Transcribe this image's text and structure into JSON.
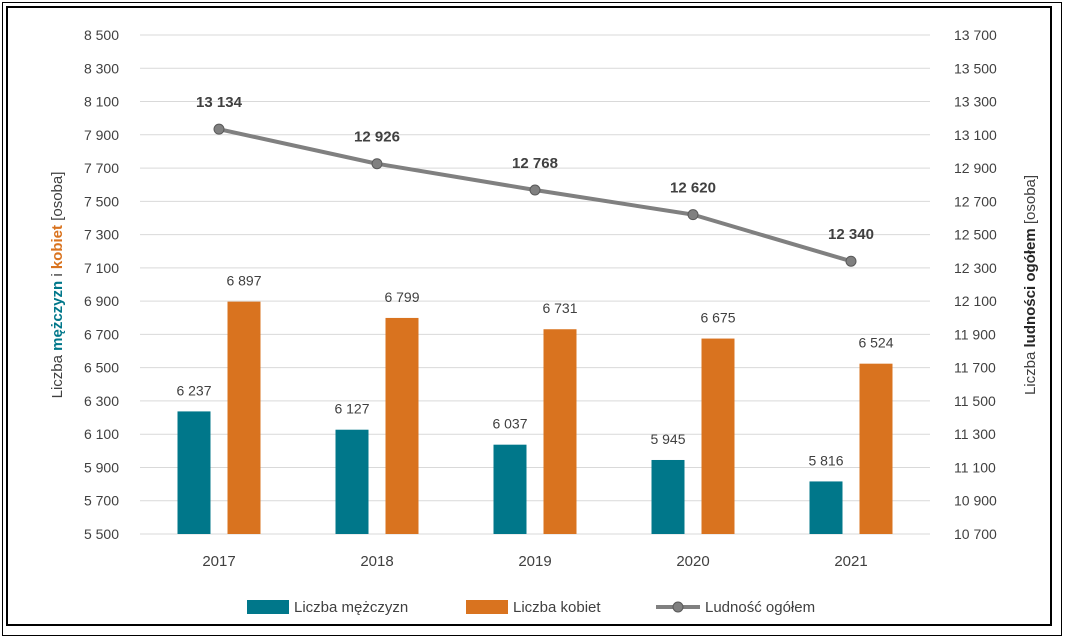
{
  "chart_data": {
    "type": "bar",
    "categories": [
      "2017",
      "2018",
      "2019",
      "2020",
      "2021"
    ],
    "series": [
      {
        "name": "Liczba mężczyzn",
        "type": "bar",
        "axis": "left",
        "color": "#00778a",
        "values": [
          6237,
          6127,
          6037,
          5945,
          5816
        ],
        "labels": [
          "6 237",
          "6 127",
          "6 037",
          "5 945",
          "5 816"
        ]
      },
      {
        "name": "Liczba kobiet",
        "type": "bar",
        "axis": "left",
        "color": "#d9731f",
        "values": [
          6897,
          6799,
          6731,
          6675,
          6524
        ],
        "labels": [
          "6 897",
          "6 799",
          "6 731",
          "6 675",
          "6 524"
        ]
      },
      {
        "name": "Ludność ogółem",
        "type": "line",
        "axis": "right",
        "color": "#808080",
        "values": [
          13134,
          12926,
          12768,
          12620,
          12340
        ],
        "labels": [
          "13 134",
          "12 926",
          "12 768",
          "12 620",
          "12 340"
        ]
      }
    ],
    "left_axis": {
      "range": [
        5500,
        8500
      ],
      "tick_labels": [
        "5 500",
        "5 700",
        "5 900",
        "6 100",
        "6 300",
        "6 500",
        "6 700",
        "6 900",
        "7 100",
        "7 300",
        "7 500",
        "7 700",
        "7 900",
        "8 100",
        "8 300",
        "8 500"
      ],
      "title_parts": [
        "Liczba ",
        "mężczyzn",
        " i ",
        "kobiet",
        " [osoba]"
      ]
    },
    "right_axis": {
      "range": [
        10700,
        13700
      ],
      "tick_labels": [
        "10 700",
        "10 900",
        "11 100",
        "11 300",
        "11 500",
        "11 700",
        "11 900",
        "12 100",
        "12 300",
        "12 500",
        "12 700",
        "12 900",
        "13 100",
        "13 300",
        "13 500",
        "13 700"
      ],
      "title_parts": [
        "Liczba ",
        "ludności ogółem",
        " [osoba]"
      ]
    },
    "grid": true,
    "legend_position": "bottom"
  },
  "colors": {
    "men": "#00778a",
    "women": "#d9731f",
    "total": "#808080",
    "grid": "#d9d9d9"
  }
}
